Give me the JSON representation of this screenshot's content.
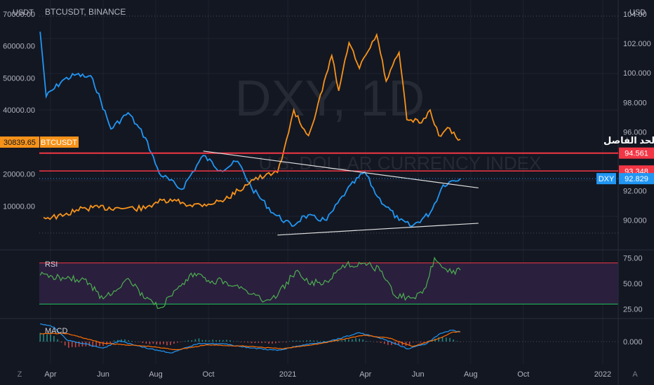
{
  "symbol_title": "BTCUSDT, BINANCE",
  "watermark": {
    "line1": "DXY, 1D",
    "line2": "U.S. DOLLAR CURRENCY INDEX"
  },
  "annotation_text": ".الحد الفاصل",
  "bottom_icons": {
    "left": "Z",
    "right": "A"
  },
  "colors": {
    "background": "#131722",
    "grid": "#1f2330",
    "axis_text": "#b2b5be",
    "btc": "#f7931a",
    "dxy": "#2196f3",
    "rsi": "#4caf50",
    "rsi_band": "#2a1f3d",
    "level_red": "#f23645",
    "trend_white": "#e0e0e0",
    "macd_line": "#2196f3",
    "signal_line": "#ff6d00"
  },
  "chart_data": [
    {
      "type": "line",
      "title": "BTCUSDT, BINANCE",
      "left_axis": {
        "unit": "USDT",
        "ticks": [
          "70000.00",
          "60000.00",
          "50000.00",
          "40000.00",
          "20000.00",
          "10000.00"
        ],
        "ylim": [
          0,
          70000
        ]
      },
      "right_axis": {
        "unit": "USD",
        "ticks": [
          "104.00",
          "102.000",
          "100.000",
          "98.000",
          "96.000",
          "92.000",
          "90.000"
        ],
        "ylim": [
          88.8,
          104
        ]
      },
      "x_ticks": [
        "Apr",
        "Jun",
        "Aug",
        "Oct",
        "2021",
        "Apr",
        "Jun",
        "Aug",
        "Oct",
        "2022"
      ],
      "series": [
        {
          "name": "BTCUSDT",
          "axis": "left",
          "points": [
            [
              "2020-03-24",
              6400
            ],
            [
              "2020-04-15",
              6800
            ],
            [
              "2020-05-01",
              8800
            ],
            [
              "2020-05-20",
              9500
            ],
            [
              "2020-06-15",
              9400
            ],
            [
              "2020-07-20",
              9200
            ],
            [
              "2020-08-01",
              11200
            ],
            [
              "2020-08-25",
              11600
            ],
            [
              "2020-09-10",
              10300
            ],
            [
              "2020-10-01",
              10600
            ],
            [
              "2020-10-20",
              12000
            ],
            [
              "2020-11-05",
              14800
            ],
            [
              "2020-11-20",
              18200
            ],
            [
              "2020-12-05",
              19200
            ],
            [
              "2020-12-20",
              20500
            ],
            [
              "2021-01-02",
              33000
            ],
            [
              "2021-01-08",
              40000
            ],
            [
              "2021-01-15",
              36000
            ],
            [
              "2021-01-25",
              32000
            ],
            [
              "2021-02-10",
              46000
            ],
            [
              "2021-02-21",
              57000
            ],
            [
              "2021-03-01",
              46000
            ],
            [
              "2021-03-13",
              61000
            ],
            [
              "2021-03-25",
              53000
            ],
            [
              "2021-04-14",
              63500
            ],
            [
              "2021-04-25",
              49000
            ],
            [
              "2021-05-10",
              58000
            ],
            [
              "2021-05-19",
              37000
            ],
            [
              "2021-06-05",
              36000
            ],
            [
              "2021-06-15",
              40000
            ],
            [
              "2021-06-25",
              32000
            ],
            [
              "2021-07-05",
              34500
            ],
            [
              "2021-07-15",
              31500
            ],
            [
              "2021-07-20",
              30839.65
            ]
          ]
        },
        {
          "name": "DXY",
          "axis": "right",
          "points": [
            [
              "2020-03-20",
              102.8
            ],
            [
              "2020-03-27",
              98.4
            ],
            [
              "2020-04-15",
              99.5
            ],
            [
              "2020-05-01",
              99.9
            ],
            [
              "2020-05-20",
              99.6
            ],
            [
              "2020-06-10",
              96.2
            ],
            [
              "2020-06-30",
              97.3
            ],
            [
              "2020-07-20",
              95.6
            ],
            [
              "2020-08-05",
              93.2
            ],
            [
              "2020-08-31",
              92.1
            ],
            [
              "2020-09-25",
              94.4
            ],
            [
              "2020-10-15",
              93.4
            ],
            [
              "2020-11-04",
              94.0
            ],
            [
              "2020-11-20",
              92.2
            ],
            [
              "2020-12-15",
              90.5
            ],
            [
              "2021-01-06",
              89.6
            ],
            [
              "2021-01-20",
              90.3
            ],
            [
              "2021-02-15",
              90.0
            ],
            [
              "2021-03-10",
              92.0
            ],
            [
              "2021-03-31",
              93.3
            ],
            [
              "2021-04-15",
              91.6
            ],
            [
              "2021-05-10",
              90.0
            ],
            [
              "2021-05-25",
              89.6
            ],
            [
              "2021-06-15",
              90.5
            ],
            [
              "2021-06-30",
              92.4
            ],
            [
              "2021-07-07",
              92.6
            ],
            [
              "2021-07-20",
              92.829
            ]
          ]
        }
      ],
      "levels": [
        {
          "name": "resistance",
          "value": 94.561,
          "label": "94.561"
        },
        {
          "name": "support",
          "value": 93.348,
          "label": "93.348"
        }
      ],
      "labels": {
        "btc_price": "30839.65",
        "btc_tag": "BTCUSDT",
        "dxy_price": "92.829",
        "dxy_tag": "DXY"
      },
      "trendlines": [
        {
          "name": "upper-trendline",
          "points": [
            [
              "2020-09-25",
              94.7
            ],
            [
              "2021-08-10",
              92.2
            ]
          ]
        },
        {
          "name": "lower-trendline",
          "points": [
            [
              "2020-12-20",
              89.0
            ],
            [
              "2021-08-10",
              89.8
            ]
          ]
        }
      ]
    },
    {
      "type": "line",
      "title": "RSI",
      "ticks": [
        "75.00",
        "50.00",
        "25.00"
      ],
      "ylim": [
        18,
        82
      ],
      "band": [
        30,
        70
      ],
      "series": [
        {
          "name": "RSI",
          "points": [
            [
              "2020-03-20",
              58
            ],
            [
              "2020-04-15",
              56
            ],
            [
              "2020-05-10",
              54
            ],
            [
              "2020-06-01",
              35
            ],
            [
              "2020-06-30",
              55
            ],
            [
              "2020-07-20",
              35
            ],
            [
              "2020-08-05",
              26
            ],
            [
              "2020-08-20",
              38
            ],
            [
              "2020-09-15",
              60
            ],
            [
              "2020-10-01",
              53
            ],
            [
              "2020-10-20",
              52
            ],
            [
              "2020-11-10",
              45
            ],
            [
              "2020-12-01",
              34
            ],
            [
              "2020-12-20",
              38
            ],
            [
              "2021-01-10",
              62
            ],
            [
              "2021-01-25",
              50
            ],
            [
              "2021-02-15",
              52
            ],
            [
              "2021-03-10",
              68
            ],
            [
              "2021-03-31",
              70
            ],
            [
              "2021-04-20",
              62
            ],
            [
              "2021-05-05",
              38
            ],
            [
              "2021-05-25",
              36
            ],
            [
              "2021-06-10",
              46
            ],
            [
              "2021-06-20",
              75
            ],
            [
              "2021-07-01",
              65
            ],
            [
              "2021-07-10",
              60
            ],
            [
              "2021-07-20",
              63
            ]
          ]
        }
      ]
    },
    {
      "type": "bar",
      "title": "MACD",
      "ticks": [
        "0.000"
      ],
      "ylim": [
        -1.3,
        1.3
      ],
      "series": [
        {
          "name": "MACD",
          "points": [
            [
              "2020-03-20",
              1.1
            ],
            [
              "2020-04-05",
              0.9
            ],
            [
              "2020-04-20",
              0.1
            ],
            [
              "2020-06-01",
              -0.4
            ],
            [
              "2020-06-20",
              0.05
            ],
            [
              "2020-07-25",
              -0.45
            ],
            [
              "2020-08-20",
              -0.7
            ],
            [
              "2020-09-20",
              -0.1
            ],
            [
              "2020-10-20",
              -0.15
            ],
            [
              "2020-11-20",
              -0.4
            ],
            [
              "2020-12-20",
              -0.55
            ],
            [
              "2021-01-15",
              -0.25
            ],
            [
              "2021-02-20",
              0.05
            ],
            [
              "2021-03-25",
              0.55
            ],
            [
              "2021-04-25",
              0.1
            ],
            [
              "2021-05-20",
              -0.45
            ],
            [
              "2021-06-10",
              -0.15
            ],
            [
              "2021-06-25",
              0.45
            ],
            [
              "2021-07-10",
              0.7
            ],
            [
              "2021-07-20",
              0.6
            ]
          ]
        },
        {
          "name": "Signal",
          "points": [
            [
              "2020-03-20",
              0.5
            ],
            [
              "2020-04-20",
              0.5
            ],
            [
              "2020-06-01",
              -0.1
            ],
            [
              "2020-07-25",
              -0.3
            ],
            [
              "2020-08-25",
              -0.5
            ],
            [
              "2020-09-30",
              -0.2
            ],
            [
              "2020-11-20",
              -0.3
            ],
            [
              "2020-12-25",
              -0.45
            ],
            [
              "2021-02-10",
              -0.1
            ],
            [
              "2021-03-30",
              0.4
            ],
            [
              "2021-04-30",
              0.2
            ],
            [
              "2021-05-25",
              -0.3
            ],
            [
              "2021-06-25",
              0.2
            ],
            [
              "2021-07-12",
              0.6
            ],
            [
              "2021-07-20",
              0.6
            ]
          ]
        }
      ]
    }
  ]
}
